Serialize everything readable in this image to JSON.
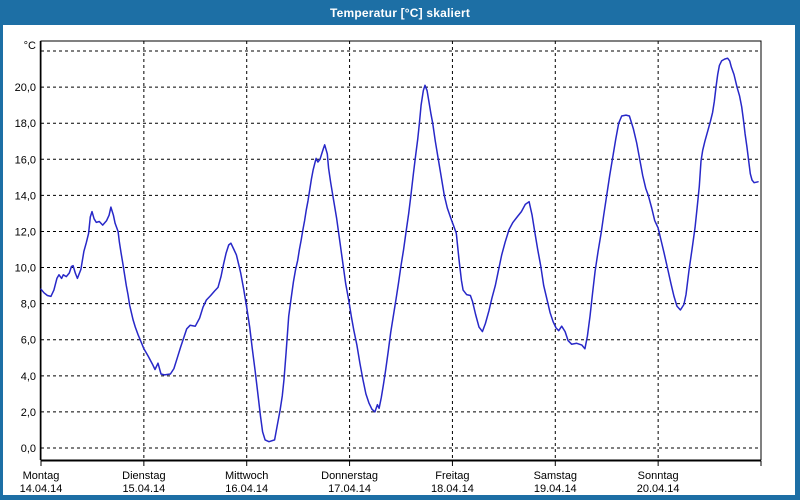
{
  "window": {
    "title": "Temperatur [°C] skaliert",
    "titlebar_color": "#1d6fa5",
    "border_color": "#1d6fa5",
    "title_text_color": "#ffffff",
    "background_color": "#ffffff"
  },
  "chart_data": {
    "type": "line",
    "title": "Temperatur [°C] skaliert",
    "ylabel": "°C",
    "xlabel": "",
    "ylim": [
      -0.7,
      22.6
    ],
    "y_gridline_values": [
      0,
      2,
      4,
      6,
      8,
      10,
      12,
      14,
      16,
      18,
      20,
      22
    ],
    "y_tick_labels": [
      "0,0",
      "2,0",
      "4,0",
      "6,0",
      "8,0",
      "10,0",
      "12,0",
      "14,0",
      "16,0",
      "18,0",
      "20,0"
    ],
    "grid": "dashed-black-both-axes",
    "legend_position": "none",
    "line_color": "#2828c8",
    "x_range_hours": [
      0,
      168
    ],
    "x_unit": "hours from Montag 14.04.14 00:00, one gridline per day",
    "x_axis_days": [
      {
        "name": "Montag",
        "date": "14.04.14"
      },
      {
        "name": "Dienstag",
        "date": "15.04.14"
      },
      {
        "name": "Mittwoch",
        "date": "16.04.14"
      },
      {
        "name": "Donnerstag",
        "date": "17.04.14"
      },
      {
        "name": "Freitag",
        "date": "18.04.14"
      },
      {
        "name": "Samstag",
        "date": "19.04.14"
      },
      {
        "name": "Sonntag",
        "date": "20.04.14"
      }
    ],
    "series": [
      {
        "name": "Temperatur [°C]",
        "points_hour_degC": [
          [
            0,
            8.8
          ],
          [
            0.7,
            8.6
          ],
          [
            1.5,
            8.45
          ],
          [
            2.3,
            8.4
          ],
          [
            3.0,
            8.75
          ],
          [
            3.7,
            9.4
          ],
          [
            4.2,
            9.6
          ],
          [
            4.8,
            9.4
          ],
          [
            5.2,
            9.6
          ],
          [
            5.9,
            9.5
          ],
          [
            6.6,
            9.7
          ],
          [
            7.1,
            10.05
          ],
          [
            7.5,
            10.1
          ],
          [
            8.0,
            9.7
          ],
          [
            8.5,
            9.4
          ],
          [
            9.3,
            9.9
          ],
          [
            10.0,
            10.9
          ],
          [
            10.6,
            11.4
          ],
          [
            11.1,
            11.9
          ],
          [
            11.5,
            12.8
          ],
          [
            11.9,
            13.1
          ],
          [
            12.4,
            12.7
          ],
          [
            12.9,
            12.5
          ],
          [
            13.6,
            12.55
          ],
          [
            14.4,
            12.35
          ],
          [
            15.3,
            12.6
          ],
          [
            15.9,
            12.9
          ],
          [
            16.3,
            13.35
          ],
          [
            16.9,
            12.9
          ],
          [
            17.3,
            12.45
          ],
          [
            18.0,
            12.0
          ],
          [
            18.3,
            11.4
          ],
          [
            18.7,
            10.8
          ],
          [
            19.1,
            10.2
          ],
          [
            19.5,
            9.6
          ],
          [
            19.9,
            9.0
          ],
          [
            20.3,
            8.5
          ],
          [
            20.7,
            7.9
          ],
          [
            21.1,
            7.5
          ],
          [
            21.5,
            7.1
          ],
          [
            22.0,
            6.7
          ],
          [
            22.6,
            6.3
          ],
          [
            23.3,
            5.9
          ],
          [
            24.0,
            5.5
          ],
          [
            25.0,
            5.1
          ],
          [
            26.0,
            4.65
          ],
          [
            26.6,
            4.35
          ],
          [
            27.3,
            4.7
          ],
          [
            28.0,
            4.1
          ],
          [
            28.8,
            4.05
          ],
          [
            30.2,
            4.1
          ],
          [
            31.0,
            4.4
          ],
          [
            31.8,
            5.0
          ],
          [
            32.6,
            5.6
          ],
          [
            33.3,
            6.1
          ],
          [
            34.0,
            6.6
          ],
          [
            34.8,
            6.8
          ],
          [
            36.0,
            6.75
          ],
          [
            37.0,
            7.2
          ],
          [
            37.8,
            7.8
          ],
          [
            38.6,
            8.2
          ],
          [
            39.6,
            8.45
          ],
          [
            40.5,
            8.7
          ],
          [
            41.3,
            8.9
          ],
          [
            42.0,
            9.5
          ],
          [
            42.6,
            10.2
          ],
          [
            43.2,
            10.8
          ],
          [
            43.8,
            11.25
          ],
          [
            44.3,
            11.35
          ],
          [
            45.0,
            11.0
          ],
          [
            45.6,
            10.7
          ],
          [
            46.2,
            10.1
          ],
          [
            46.6,
            9.7
          ],
          [
            47.3,
            8.8
          ],
          [
            48.0,
            7.8
          ],
          [
            48.7,
            6.7
          ],
          [
            49.3,
            5.5
          ],
          [
            50.0,
            4.2
          ],
          [
            50.7,
            2.8
          ],
          [
            51.2,
            1.8
          ],
          [
            51.7,
            0.9
          ],
          [
            52.3,
            0.45
          ],
          [
            53.2,
            0.35
          ],
          [
            54.5,
            0.45
          ],
          [
            55.1,
            1.2
          ],
          [
            55.8,
            2.1
          ],
          [
            56.3,
            2.9
          ],
          [
            56.7,
            3.8
          ],
          [
            57.2,
            5.3
          ],
          [
            57.8,
            7.3
          ],
          [
            58.3,
            8.2
          ],
          [
            58.9,
            9.2
          ],
          [
            59.4,
            9.9
          ],
          [
            59.9,
            10.4
          ],
          [
            60.3,
            11.0
          ],
          [
            60.7,
            11.5
          ],
          [
            61.1,
            12.1
          ],
          [
            61.5,
            12.6
          ],
          [
            61.9,
            13.2
          ],
          [
            62.3,
            13.7
          ],
          [
            62.7,
            14.3
          ],
          [
            63.1,
            14.9
          ],
          [
            63.5,
            15.4
          ],
          [
            63.9,
            15.8
          ],
          [
            64.2,
            16.05
          ],
          [
            64.6,
            15.85
          ],
          [
            65.1,
            16.0
          ],
          [
            65.5,
            16.3
          ],
          [
            65.9,
            16.6
          ],
          [
            66.2,
            16.8
          ],
          [
            66.8,
            16.3
          ],
          [
            67.1,
            15.5
          ],
          [
            67.6,
            14.7
          ],
          [
            68.3,
            13.7
          ],
          [
            69.0,
            12.7
          ],
          [
            69.7,
            11.5
          ],
          [
            70.4,
            10.3
          ],
          [
            71.1,
            9.1
          ],
          [
            71.8,
            8.2
          ],
          [
            72.4,
            7.3
          ],
          [
            73.0,
            6.5
          ],
          [
            73.7,
            5.7
          ],
          [
            74.4,
            4.7
          ],
          [
            75.1,
            3.8
          ],
          [
            75.8,
            3.0
          ],
          [
            76.5,
            2.5
          ],
          [
            77.2,
            2.15
          ],
          [
            77.9,
            2.0
          ],
          [
            78.5,
            2.4
          ],
          [
            78.9,
            2.2
          ],
          [
            79.4,
            2.8
          ],
          [
            79.9,
            3.5
          ],
          [
            80.4,
            4.3
          ],
          [
            81.0,
            5.3
          ],
          [
            81.6,
            6.4
          ],
          [
            82.2,
            7.3
          ],
          [
            82.8,
            8.2
          ],
          [
            83.4,
            9.1
          ],
          [
            84.0,
            10.1
          ],
          [
            84.6,
            11.0
          ],
          [
            85.2,
            12.0
          ],
          [
            85.8,
            13.0
          ],
          [
            86.3,
            14.0
          ],
          [
            86.9,
            15.2
          ],
          [
            87.4,
            16.2
          ],
          [
            87.9,
            17.1
          ],
          [
            88.3,
            18.0
          ],
          [
            88.7,
            19.0
          ],
          [
            89.2,
            19.8
          ],
          [
            89.6,
            20.1
          ],
          [
            90.1,
            19.8
          ],
          [
            90.5,
            19.2
          ],
          [
            91.0,
            18.5
          ],
          [
            91.4,
            18.0
          ],
          [
            92.0,
            17.0
          ],
          [
            92.7,
            16.0
          ],
          [
            93.4,
            15.0
          ],
          [
            94.1,
            14.0
          ],
          [
            94.8,
            13.3
          ],
          [
            95.6,
            12.75
          ],
          [
            96.3,
            12.3
          ],
          [
            96.9,
            11.9
          ],
          [
            97.5,
            10.5
          ],
          [
            98.1,
            9.3
          ],
          [
            98.5,
            8.75
          ],
          [
            99.3,
            8.5
          ],
          [
            100.2,
            8.45
          ],
          [
            100.7,
            8.1
          ],
          [
            101.4,
            7.4
          ],
          [
            102.2,
            6.7
          ],
          [
            103.0,
            6.45
          ],
          [
            103.7,
            6.9
          ],
          [
            104.5,
            7.6
          ],
          [
            105.2,
            8.3
          ],
          [
            106.0,
            9.0
          ],
          [
            106.7,
            9.8
          ],
          [
            107.5,
            10.7
          ],
          [
            108.3,
            11.4
          ],
          [
            109.2,
            12.1
          ],
          [
            110.1,
            12.5
          ],
          [
            111.1,
            12.8
          ],
          [
            112.1,
            13.1
          ],
          [
            113.0,
            13.5
          ],
          [
            113.9,
            13.65
          ],
          [
            114.6,
            12.9
          ],
          [
            115.2,
            12.0
          ],
          [
            115.9,
            11.0
          ],
          [
            116.6,
            10.1
          ],
          [
            117.3,
            9.0
          ],
          [
            118.0,
            8.3
          ],
          [
            118.8,
            7.5
          ],
          [
            119.5,
            7.0
          ],
          [
            120.2,
            6.65
          ],
          [
            120.8,
            6.5
          ],
          [
            121.5,
            6.75
          ],
          [
            122.3,
            6.45
          ],
          [
            123.0,
            5.95
          ],
          [
            123.8,
            5.75
          ],
          [
            125.0,
            5.8
          ],
          [
            126.2,
            5.7
          ],
          [
            126.9,
            5.5
          ],
          [
            127.5,
            6.2
          ],
          [
            128.1,
            7.3
          ],
          [
            128.7,
            8.6
          ],
          [
            129.3,
            9.8
          ],
          [
            130.0,
            10.9
          ],
          [
            130.7,
            11.9
          ],
          [
            131.3,
            12.9
          ],
          [
            132.0,
            14.0
          ],
          [
            132.7,
            15.1
          ],
          [
            133.4,
            16.1
          ],
          [
            134.1,
            17.1
          ],
          [
            134.8,
            18.0
          ],
          [
            135.5,
            18.4
          ],
          [
            136.5,
            18.45
          ],
          [
            137.3,
            18.4
          ],
          [
            138.2,
            17.7
          ],
          [
            139.0,
            16.9
          ],
          [
            139.7,
            16.0
          ],
          [
            140.4,
            15.1
          ],
          [
            141.1,
            14.4
          ],
          [
            141.7,
            14.0
          ],
          [
            142.5,
            13.3
          ],
          [
            143.2,
            12.6
          ],
          [
            144.0,
            12.2
          ],
          [
            144.7,
            11.5
          ],
          [
            145.4,
            10.8
          ],
          [
            146.2,
            9.95
          ],
          [
            147.0,
            9.1
          ],
          [
            147.7,
            8.4
          ],
          [
            148.4,
            7.85
          ],
          [
            149.2,
            7.65
          ],
          [
            150.0,
            7.95
          ],
          [
            150.5,
            8.5
          ],
          [
            151.2,
            9.85
          ],
          [
            151.9,
            11.0
          ],
          [
            152.6,
            12.2
          ],
          [
            153.1,
            13.3
          ],
          [
            153.6,
            14.5
          ],
          [
            154.0,
            15.9
          ],
          [
            154.4,
            16.5
          ],
          [
            154.9,
            17.0
          ],
          [
            155.6,
            17.6
          ],
          [
            156.2,
            18.1
          ],
          [
            156.7,
            18.6
          ],
          [
            157.1,
            19.2
          ],
          [
            157.5,
            20.0
          ],
          [
            157.9,
            20.7
          ],
          [
            158.3,
            21.2
          ],
          [
            158.8,
            21.45
          ],
          [
            159.5,
            21.55
          ],
          [
            160.2,
            21.6
          ],
          [
            160.7,
            21.45
          ],
          [
            161.1,
            21.1
          ],
          [
            161.7,
            20.7
          ],
          [
            162.4,
            20.0
          ],
          [
            163.0,
            19.5
          ],
          [
            163.5,
            18.9
          ],
          [
            163.9,
            18.2
          ],
          [
            164.3,
            17.4
          ],
          [
            164.7,
            16.7
          ],
          [
            165.1,
            15.95
          ],
          [
            165.5,
            15.2
          ],
          [
            165.9,
            14.85
          ],
          [
            166.4,
            14.7
          ],
          [
            167.3,
            14.75
          ]
        ]
      }
    ]
  }
}
